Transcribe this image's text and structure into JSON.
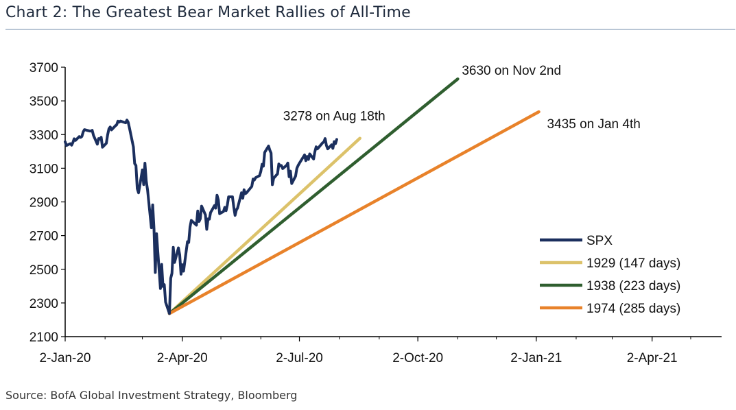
{
  "title": "Chart 2: The Greatest Bear Market Rallies of All-Time",
  "source": "Source: BofA Global Investment Strategy, Bloomberg",
  "colors": {
    "spx": "#1b2f5e",
    "y1929": "#dcc26a",
    "y1938": "#2f5e2f",
    "y1974": "#e8822a",
    "axis": "#000000",
    "rule": "#6b86a6"
  },
  "chart_data": {
    "type": "line",
    "xlabel": "",
    "ylabel": "",
    "xlim": [
      "2020-01-02",
      "2021-05-26"
    ],
    "ylim": [
      2100,
      3700
    ],
    "grid": false,
    "legend_position": "bottom-right",
    "x_ticks": [
      "2-Jan-20",
      "2-Apr-20",
      "2-Jul-20",
      "2-Oct-20",
      "2-Jan-21",
      "2-Apr-21"
    ],
    "x_tick_dates": [
      "2020-01-02",
      "2020-04-02",
      "2020-07-02",
      "2020-10-02",
      "2021-01-02",
      "2021-04-02"
    ],
    "y_ticks": [
      2100,
      2300,
      2500,
      2700,
      2900,
      3100,
      3300,
      3500,
      3700
    ],
    "series": [
      {
        "name": "SPX",
        "color": "#1b2f5e",
        "points": [
          [
            "2020-01-02",
            3257
          ],
          [
            "2020-01-03",
            3235
          ],
          [
            "2020-01-06",
            3246
          ],
          [
            "2020-01-07",
            3237
          ],
          [
            "2020-01-08",
            3253
          ],
          [
            "2020-01-09",
            3275
          ],
          [
            "2020-01-10",
            3265
          ],
          [
            "2020-01-13",
            3288
          ],
          [
            "2020-01-14",
            3283
          ],
          [
            "2020-01-15",
            3289
          ],
          [
            "2020-01-16",
            3316
          ],
          [
            "2020-01-17",
            3329
          ],
          [
            "2020-01-21",
            3321
          ],
          [
            "2020-01-22",
            3321
          ],
          [
            "2020-01-23",
            3325
          ],
          [
            "2020-01-24",
            3295
          ],
          [
            "2020-01-27",
            3243
          ],
          [
            "2020-01-28",
            3276
          ],
          [
            "2020-01-29",
            3273
          ],
          [
            "2020-01-30",
            3284
          ],
          [
            "2020-01-31",
            3225
          ],
          [
            "2020-02-03",
            3248
          ],
          [
            "2020-02-04",
            3298
          ],
          [
            "2020-02-05",
            3334
          ],
          [
            "2020-02-06",
            3345
          ],
          [
            "2020-02-07",
            3328
          ],
          [
            "2020-02-10",
            3352
          ],
          [
            "2020-02-11",
            3358
          ],
          [
            "2020-02-12",
            3379
          ],
          [
            "2020-02-13",
            3374
          ],
          [
            "2020-02-14",
            3380
          ],
          [
            "2020-02-18",
            3370
          ],
          [
            "2020-02-19",
            3386
          ],
          [
            "2020-02-20",
            3373
          ],
          [
            "2020-02-21",
            3338
          ],
          [
            "2020-02-24",
            3226
          ],
          [
            "2020-02-25",
            3128
          ],
          [
            "2020-02-26",
            3116
          ],
          [
            "2020-02-27",
            2979
          ],
          [
            "2020-02-28",
            2954
          ],
          [
            "2020-03-02",
            3090
          ],
          [
            "2020-03-03",
            3003
          ],
          [
            "2020-03-04",
            3130
          ],
          [
            "2020-03-05",
            3024
          ],
          [
            "2020-03-06",
            2972
          ],
          [
            "2020-03-09",
            2747
          ],
          [
            "2020-03-10",
            2882
          ],
          [
            "2020-03-11",
            2741
          ],
          [
            "2020-03-12",
            2481
          ],
          [
            "2020-03-13",
            2711
          ],
          [
            "2020-03-16",
            2386
          ],
          [
            "2020-03-17",
            2529
          ],
          [
            "2020-03-18",
            2398
          ],
          [
            "2020-03-19",
            2409
          ],
          [
            "2020-03-20",
            2305
          ],
          [
            "2020-03-23",
            2237
          ],
          [
            "2020-03-24",
            2447
          ],
          [
            "2020-03-25",
            2476
          ],
          [
            "2020-03-26",
            2630
          ],
          [
            "2020-03-27",
            2541
          ],
          [
            "2020-03-30",
            2627
          ],
          [
            "2020-03-31",
            2585
          ],
          [
            "2020-04-01",
            2471
          ],
          [
            "2020-04-02",
            2527
          ],
          [
            "2020-04-03",
            2489
          ],
          [
            "2020-04-06",
            2664
          ],
          [
            "2020-04-07",
            2659
          ],
          [
            "2020-04-08",
            2750
          ],
          [
            "2020-04-09",
            2790
          ],
          [
            "2020-04-13",
            2762
          ],
          [
            "2020-04-14",
            2846
          ],
          [
            "2020-04-15",
            2784
          ],
          [
            "2020-04-16",
            2800
          ],
          [
            "2020-04-17",
            2875
          ],
          [
            "2020-04-20",
            2823
          ],
          [
            "2020-04-21",
            2737
          ],
          [
            "2020-04-22",
            2799
          ],
          [
            "2020-04-23",
            2798
          ],
          [
            "2020-04-24",
            2837
          ],
          [
            "2020-04-27",
            2878
          ],
          [
            "2020-04-28",
            2863
          ],
          [
            "2020-04-29",
            2940
          ],
          [
            "2020-04-30",
            2912
          ],
          [
            "2020-05-01",
            2830
          ],
          [
            "2020-05-04",
            2843
          ],
          [
            "2020-05-05",
            2868
          ],
          [
            "2020-05-06",
            2848
          ],
          [
            "2020-05-07",
            2881
          ],
          [
            "2020-05-08",
            2930
          ],
          [
            "2020-05-11",
            2930
          ],
          [
            "2020-05-12",
            2870
          ],
          [
            "2020-05-13",
            2820
          ],
          [
            "2020-05-14",
            2852
          ],
          [
            "2020-05-15",
            2864
          ],
          [
            "2020-05-18",
            2954
          ],
          [
            "2020-05-19",
            2922
          ],
          [
            "2020-05-20",
            2972
          ],
          [
            "2020-05-21",
            2949
          ],
          [
            "2020-05-22",
            2955
          ],
          [
            "2020-05-26",
            2992
          ],
          [
            "2020-05-27",
            3036
          ],
          [
            "2020-05-28",
            3030
          ],
          [
            "2020-05-29",
            3044
          ],
          [
            "2020-06-01",
            3056
          ],
          [
            "2020-06-02",
            3080
          ],
          [
            "2020-06-03",
            3123
          ],
          [
            "2020-06-04",
            3112
          ],
          [
            "2020-06-05",
            3194
          ],
          [
            "2020-06-08",
            3232
          ],
          [
            "2020-06-09",
            3207
          ],
          [
            "2020-06-10",
            3190
          ],
          [
            "2020-06-11",
            3002
          ],
          [
            "2020-06-12",
            3041
          ],
          [
            "2020-06-15",
            3067
          ],
          [
            "2020-06-16",
            3125
          ],
          [
            "2020-06-17",
            3114
          ],
          [
            "2020-06-18",
            3116
          ],
          [
            "2020-06-19",
            3098
          ],
          [
            "2020-06-22",
            3117
          ],
          [
            "2020-06-23",
            3131
          ],
          [
            "2020-06-24",
            3050
          ],
          [
            "2020-06-25",
            3083
          ],
          [
            "2020-06-26",
            3009
          ],
          [
            "2020-06-29",
            3053
          ],
          [
            "2020-06-30",
            3100
          ],
          [
            "2020-07-01",
            3116
          ],
          [
            "2020-07-02",
            3130
          ],
          [
            "2020-07-06",
            3179
          ],
          [
            "2020-07-07",
            3145
          ],
          [
            "2020-07-08",
            3170
          ],
          [
            "2020-07-09",
            3152
          ],
          [
            "2020-07-10",
            3185
          ],
          [
            "2020-07-13",
            3155
          ],
          [
            "2020-07-14",
            3197
          ],
          [
            "2020-07-15",
            3227
          ],
          [
            "2020-07-16",
            3215
          ],
          [
            "2020-07-17",
            3224
          ],
          [
            "2020-07-20",
            3251
          ],
          [
            "2020-07-21",
            3257
          ],
          [
            "2020-07-22",
            3276
          ],
          [
            "2020-07-23",
            3235
          ],
          [
            "2020-07-24",
            3215
          ],
          [
            "2020-07-27",
            3239
          ],
          [
            "2020-07-28",
            3218
          ],
          [
            "2020-07-29",
            3258
          ],
          [
            "2020-07-30",
            3246
          ],
          [
            "2020-07-31",
            3271
          ]
        ]
      },
      {
        "name": "1929 (147 days)",
        "color": "#dcc26a",
        "points": [
          [
            "2020-03-23",
            2237
          ],
          [
            "2020-08-18",
            3278
          ]
        ]
      },
      {
        "name": "1938 (223 days)",
        "color": "#2f5e2f",
        "points": [
          [
            "2020-03-23",
            2237
          ],
          [
            "2020-11-02",
            3630
          ]
        ]
      },
      {
        "name": "1974 (285 days)",
        "color": "#e8822a",
        "points": [
          [
            "2020-03-23",
            2237
          ],
          [
            "2021-01-04",
            3435
          ]
        ]
      }
    ],
    "annotations": [
      {
        "text": "3278 on Aug 18th",
        "series": "1929 (147 days)"
      },
      {
        "text": "3630 on Nov 2nd",
        "series": "1938 (223 days)"
      },
      {
        "text": "3435 on Jan 4th",
        "series": "1974 (285 days)"
      }
    ]
  }
}
